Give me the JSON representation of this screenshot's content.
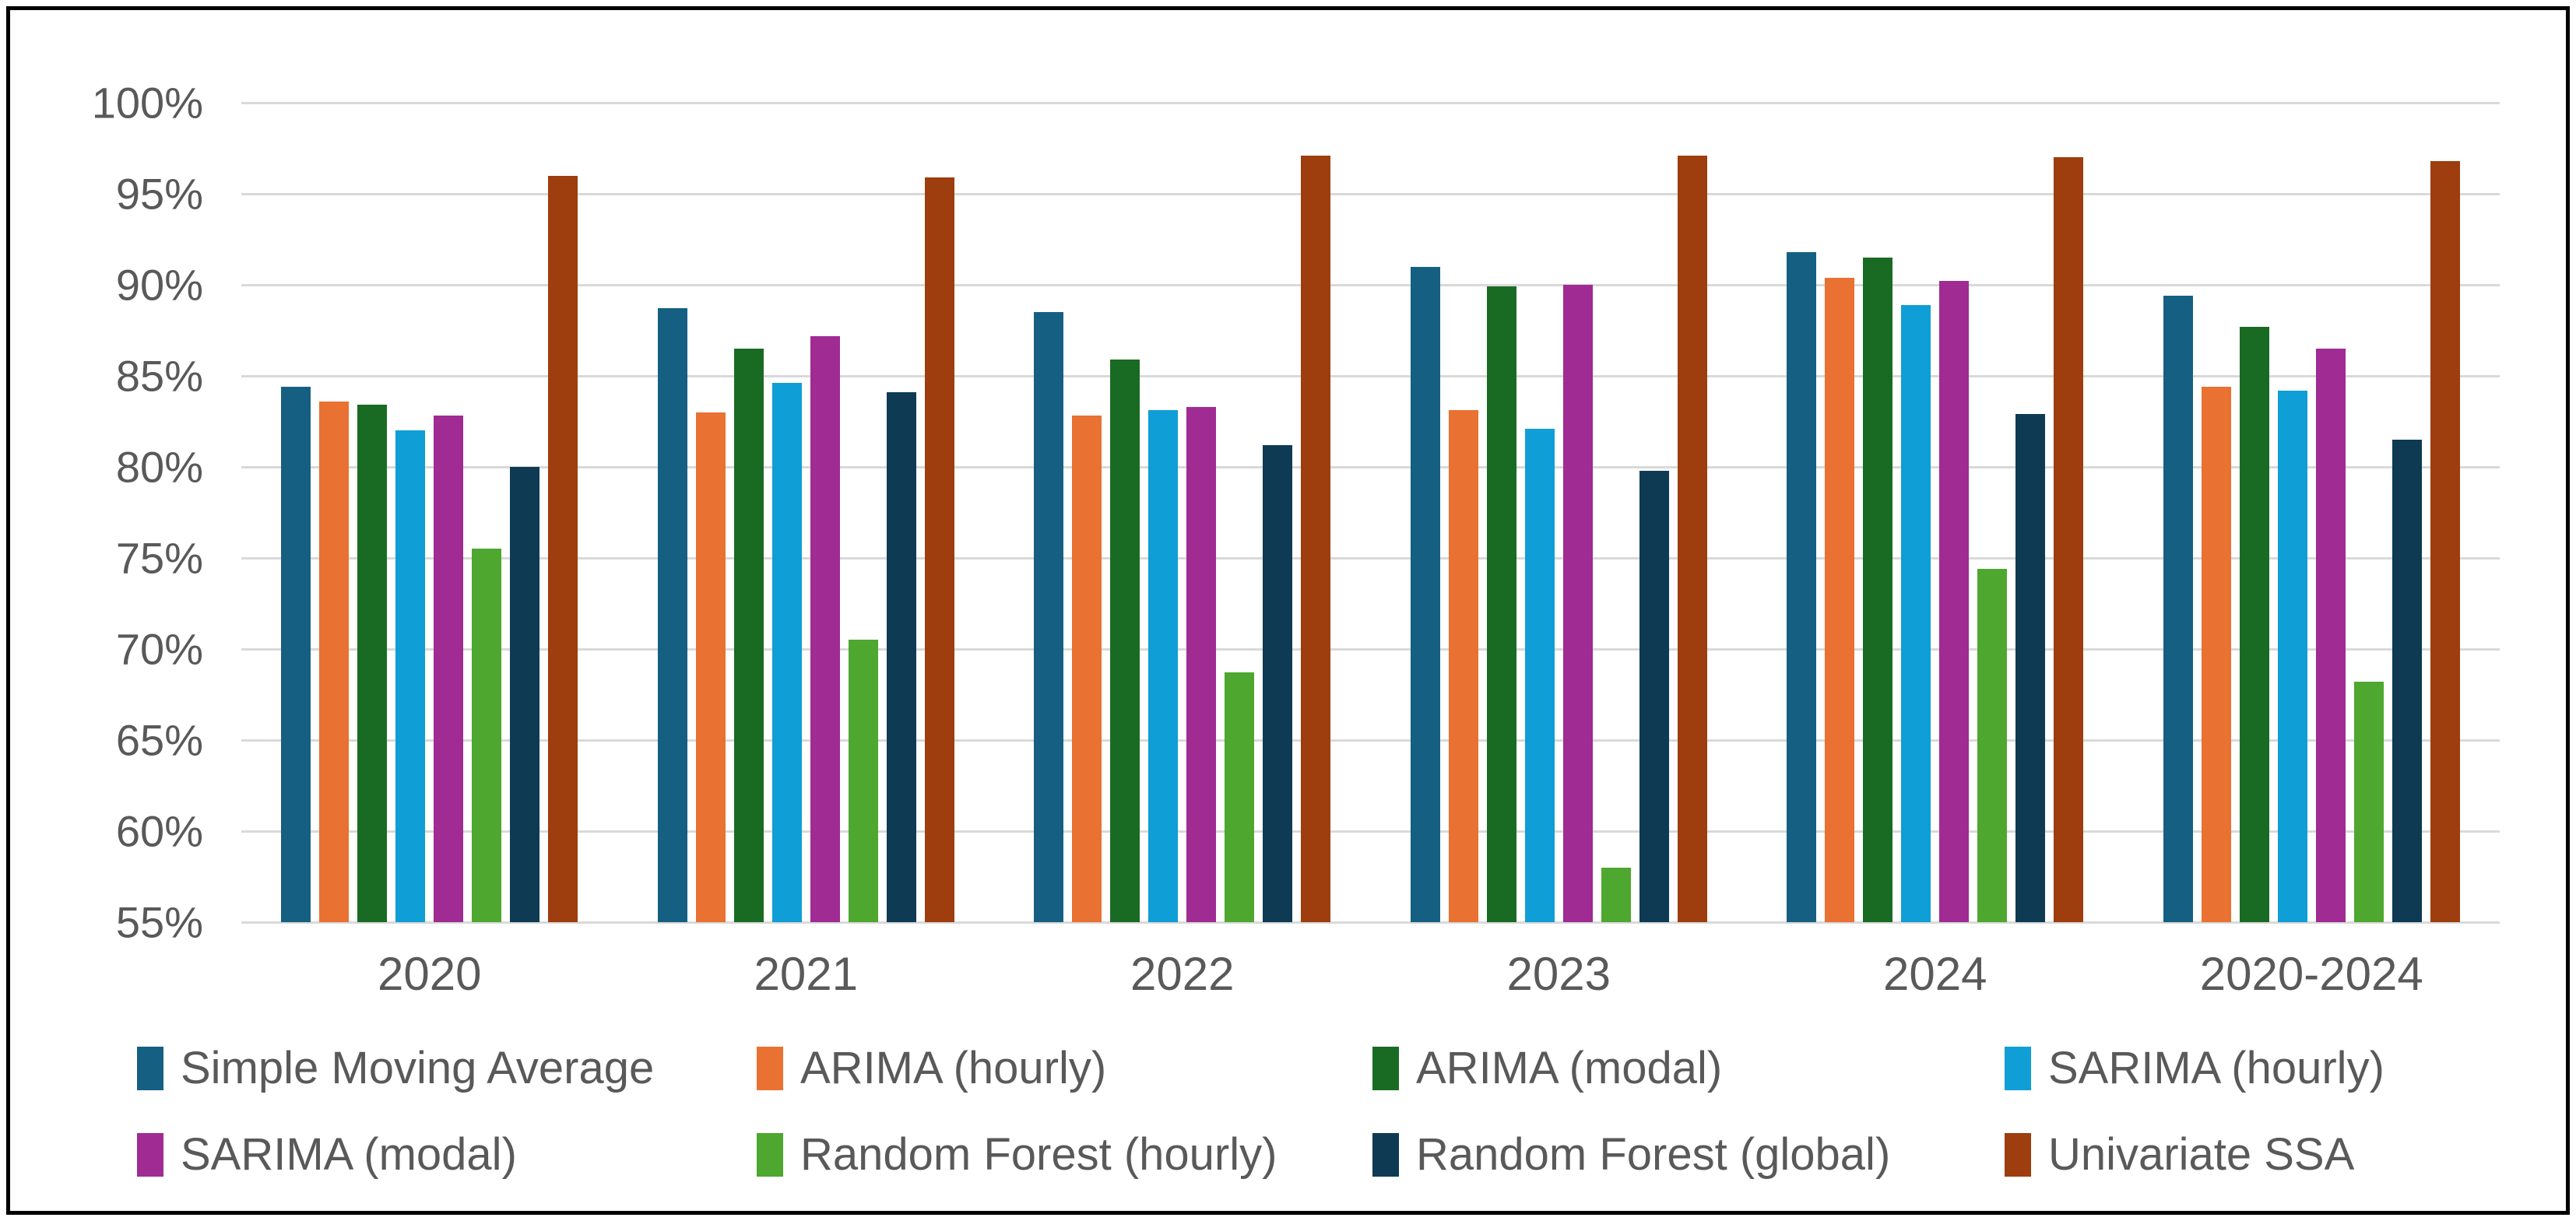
{
  "window": {
    "background": "#ffffff",
    "border_color": "#000000"
  },
  "chart_data": {
    "type": "bar",
    "title": "",
    "xlabel": "",
    "ylabel": "",
    "grid": "horizontal",
    "gridline_color": "#D9D9D9",
    "text_color": "#595959",
    "legend_position": "bottom",
    "legend_rows": 2,
    "legend_columns": 4,
    "categories": [
      "2020",
      "2021",
      "2022",
      "2023",
      "2024",
      "2020-2024"
    ],
    "y_axis": {
      "min": 55,
      "max": 100,
      "step": 5,
      "tick_labels": [
        "100%",
        "95%",
        "90%",
        "85%",
        "80%",
        "75%",
        "70%",
        "65%",
        "60%",
        "55%"
      ]
    },
    "series": [
      {
        "name": "Simple Moving Average",
        "color": "#156082",
        "values": [
          84.4,
          88.7,
          88.5,
          91.0,
          91.8,
          89.4
        ]
      },
      {
        "name": "ARIMA (hourly)",
        "color": "#E97132",
        "values": [
          83.6,
          83.0,
          82.8,
          83.1,
          90.4,
          84.4
        ]
      },
      {
        "name": "ARIMA (modal)",
        "color": "#196B24",
        "values": [
          83.4,
          86.5,
          85.9,
          89.9,
          91.5,
          87.7
        ]
      },
      {
        "name": "SARIMA (hourly)",
        "color": "#0F9ED5",
        "values": [
          82.0,
          84.6,
          83.1,
          82.1,
          88.9,
          84.2
        ]
      },
      {
        "name": "SARIMA (modal)",
        "color": "#A02B93",
        "values": [
          82.8,
          87.2,
          83.3,
          90.0,
          90.2,
          86.5
        ]
      },
      {
        "name": "Random Forest (hourly)",
        "color": "#4EA72E",
        "values": [
          75.5,
          70.5,
          68.7,
          58.0,
          74.4,
          68.2
        ]
      },
      {
        "name": "Random Forest (global)",
        "color": "#0E3A53",
        "values": [
          80.0,
          84.1,
          81.2,
          79.8,
          82.9,
          81.5
        ]
      },
      {
        "name": "Univariate SSA",
        "color": "#9E3D0E",
        "values": [
          96.0,
          95.9,
          97.1,
          97.1,
          97.0,
          96.8
        ]
      }
    ]
  }
}
